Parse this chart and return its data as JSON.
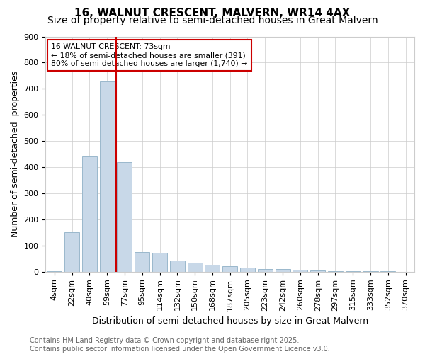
{
  "title": "16, WALNUT CRESCENT, MALVERN, WR14 4AX",
  "subtitle": "Size of property relative to semi-detached houses in Great Malvern",
  "xlabel": "Distribution of semi-detached houses by size in Great Malvern",
  "ylabel": "Number of semi-detached  properties",
  "categories": [
    "4sqm",
    "22sqm",
    "40sqm",
    "59sqm",
    "77sqm",
    "95sqm",
    "114sqm",
    "132sqm",
    "150sqm",
    "168sqm",
    "187sqm",
    "205sqm",
    "223sqm",
    "242sqm",
    "260sqm",
    "278sqm",
    "297sqm",
    "315sqm",
    "333sqm",
    "352sqm",
    "370sqm"
  ],
  "values": [
    2,
    150,
    440,
    728,
    420,
    75,
    72,
    44,
    35,
    26,
    20,
    17,
    10,
    9,
    8,
    5,
    3,
    2,
    1,
    1,
    0
  ],
  "bar_color": "#c8d8e8",
  "bar_edge_color": "#9ab8cc",
  "vline_x_index": 4,
  "vline_color": "#cc0000",
  "annotation_text": "16 WALNUT CRESCENT: 73sqm\n← 18% of semi-detached houses are smaller (391)\n80% of semi-detached houses are larger (1,740) →",
  "annotation_box_color": "#ffffff",
  "annotation_box_edge": "#cc0000",
  "footer": "Contains HM Land Registry data © Crown copyright and database right 2025.\nContains public sector information licensed under the Open Government Licence v3.0.",
  "ylim": [
    0,
    900
  ],
  "yticks": [
    0,
    100,
    200,
    300,
    400,
    500,
    600,
    700,
    800,
    900
  ],
  "title_fontsize": 11,
  "subtitle_fontsize": 10,
  "axis_fontsize": 9,
  "tick_fontsize": 8,
  "footer_fontsize": 7
}
